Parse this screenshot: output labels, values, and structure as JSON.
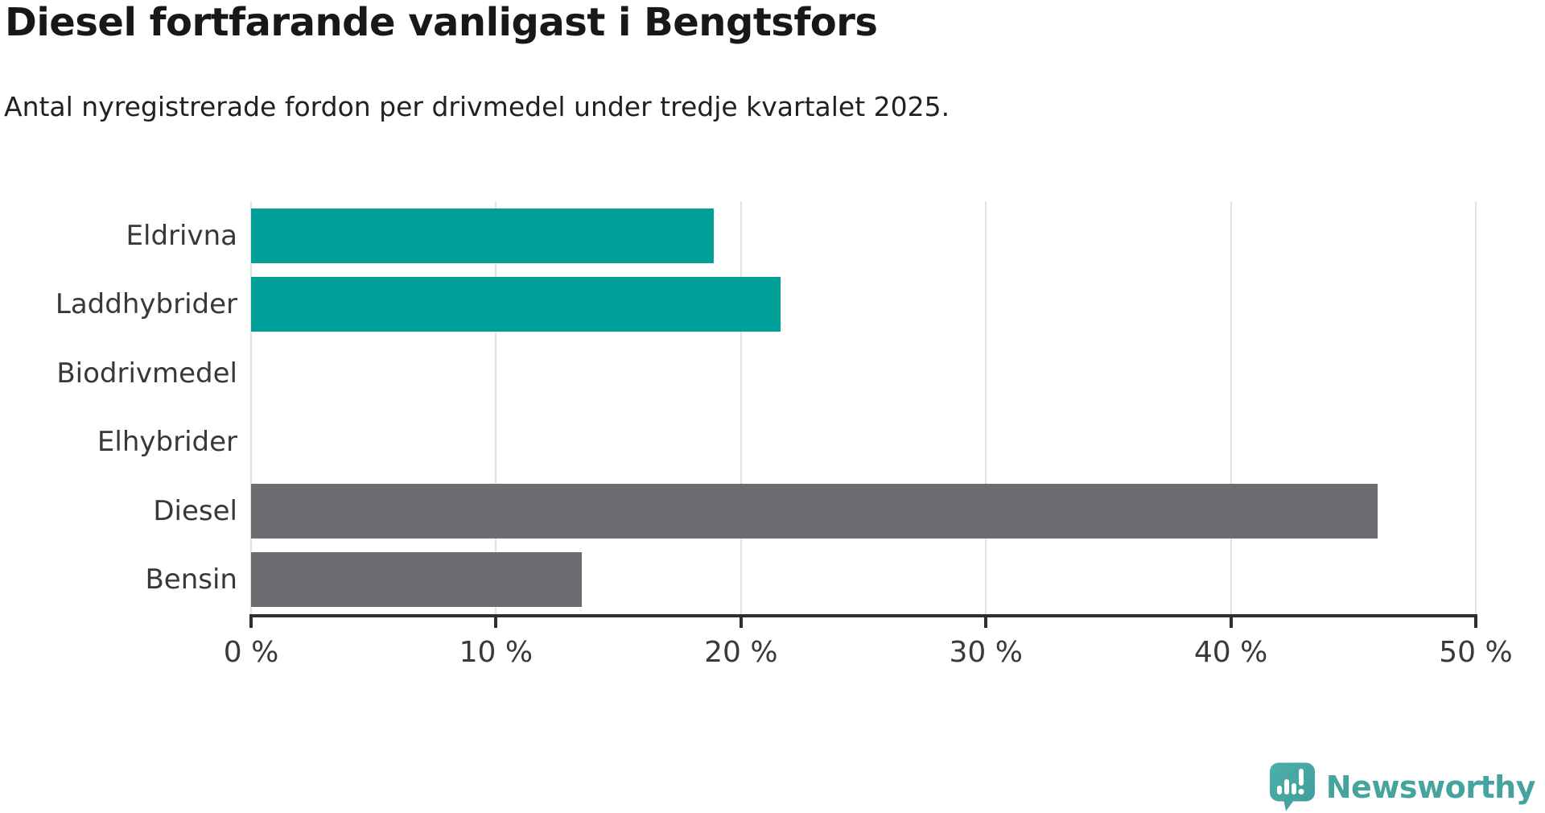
{
  "chart_data": {
    "type": "bar",
    "orientation": "horizontal",
    "title": "Diesel fortfarande vanligast i Bengtsfors",
    "subtitle": "Antal nyregistrerade fordon per drivmedel under tredje kvartalet 2025.",
    "categories": [
      "Eldrivna",
      "Laddhybrider",
      "Biodrivmedel",
      "Elhybrider",
      "Diesel",
      "Bensin"
    ],
    "values": [
      18.9,
      21.6,
      0,
      0,
      46,
      13.5
    ],
    "unit": "%",
    "xlim": [
      0,
      50
    ],
    "x_ticks": [
      0,
      10,
      20,
      30,
      40,
      50
    ],
    "x_tick_labels": [
      "0 %",
      "10 %",
      "20 %",
      "30 %",
      "40 %",
      "50 %"
    ],
    "grid": "vertical-light-gray",
    "legend": "none",
    "bar_colors": [
      "#00a099",
      "#00a099",
      "#00a099",
      "#00a099",
      "#6c6c71",
      "#6c6c71"
    ],
    "colors": {
      "teal_accent": "#00a099",
      "gray_fossil": "#6c6c71",
      "gridline": "#e3e3e3",
      "axis": "#2f2f2f"
    }
  },
  "branding": {
    "logo_text": "Newsworthy",
    "logo_color": "#45a3a0",
    "logo_icon": "newsworthy-speech-bubble-chart-icon"
  }
}
